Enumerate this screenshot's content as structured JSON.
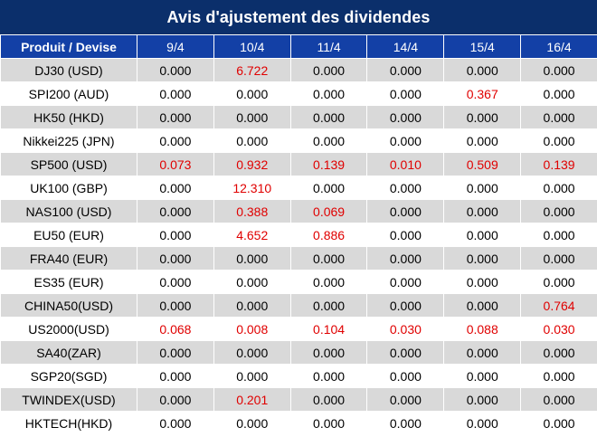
{
  "title": "Avis d'ajustement des dividendes",
  "colors": {
    "title_bg": "#0b2f6b",
    "header_bg": "#1340a6",
    "highlight": "#e00000",
    "row_alt": "#d9d9d9"
  },
  "header": [
    "Produit / Devise",
    "9/4",
    "10/4",
    "11/4",
    "14/4",
    "15/4",
    "16/4"
  ],
  "rows": [
    {
      "product": "DJ30 (USD)",
      "values": [
        "0.000",
        "6.722",
        "0.000",
        "0.000",
        "0.000",
        "0.000"
      ]
    },
    {
      "product": "SPI200 (AUD)",
      "values": [
        "0.000",
        "0.000",
        "0.000",
        "0.000",
        "0.367",
        "0.000"
      ]
    },
    {
      "product": "HK50 (HKD)",
      "values": [
        "0.000",
        "0.000",
        "0.000",
        "0.000",
        "0.000",
        "0.000"
      ]
    },
    {
      "product": "Nikkei225 (JPN)",
      "values": [
        "0.000",
        "0.000",
        "0.000",
        "0.000",
        "0.000",
        "0.000"
      ]
    },
    {
      "product": "SP500 (USD)",
      "values": [
        "0.073",
        "0.932",
        "0.139",
        "0.010",
        "0.509",
        "0.139"
      ]
    },
    {
      "product": "UK100 (GBP)",
      "values": [
        "0.000",
        "12.310",
        "0.000",
        "0.000",
        "0.000",
        "0.000"
      ]
    },
    {
      "product": "NAS100 (USD)",
      "values": [
        "0.000",
        "0.388",
        "0.069",
        "0.000",
        "0.000",
        "0.000"
      ]
    },
    {
      "product": "EU50 (EUR)",
      "values": [
        "0.000",
        "4.652",
        "0.886",
        "0.000",
        "0.000",
        "0.000"
      ]
    },
    {
      "product": "FRA40 (EUR)",
      "values": [
        "0.000",
        "0.000",
        "0.000",
        "0.000",
        "0.000",
        "0.000"
      ]
    },
    {
      "product": "ES35 (EUR)",
      "values": [
        "0.000",
        "0.000",
        "0.000",
        "0.000",
        "0.000",
        "0.000"
      ]
    },
    {
      "product": "CHINA50(USD)",
      "values": [
        "0.000",
        "0.000",
        "0.000",
        "0.000",
        "0.000",
        "0.764"
      ]
    },
    {
      "product": "US2000(USD)",
      "values": [
        "0.068",
        "0.008",
        "0.104",
        "0.030",
        "0.088",
        "0.030"
      ]
    },
    {
      "product": "SA40(ZAR)",
      "values": [
        "0.000",
        "0.000",
        "0.000",
        "0.000",
        "0.000",
        "0.000"
      ]
    },
    {
      "product": "SGP20(SGD)",
      "values": [
        "0.000",
        "0.000",
        "0.000",
        "0.000",
        "0.000",
        "0.000"
      ]
    },
    {
      "product": "TWINDEX(USD)",
      "values": [
        "0.000",
        "0.201",
        "0.000",
        "0.000",
        "0.000",
        "0.000"
      ]
    },
    {
      "product": "HKTECH(HKD)",
      "values": [
        "0.000",
        "0.000",
        "0.000",
        "0.000",
        "0.000",
        "0.000"
      ]
    }
  ]
}
